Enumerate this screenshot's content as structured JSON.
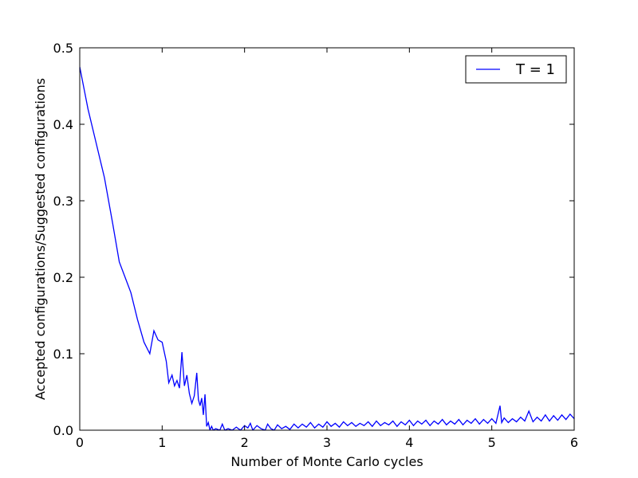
{
  "chart_data": {
    "type": "line",
    "title": "",
    "xlabel": "Number of Monte Carlo cycles",
    "ylabel": "Accepted configurations/Suggested configurations",
    "xlim": [
      0,
      6
    ],
    "ylim": [
      0,
      0.5
    ],
    "xticks": [
      0,
      1,
      2,
      3,
      4,
      5,
      6
    ],
    "xtick_labels": [
      "0",
      "1",
      "2",
      "3",
      "4",
      "5",
      "6"
    ],
    "yticks": [
      0.0,
      0.1,
      0.2,
      0.3,
      0.4,
      0.5
    ],
    "ytick_labels": [
      "0.0",
      "0.1",
      "0.2",
      "0.3",
      "0.4",
      "0.5"
    ],
    "grid": false,
    "legend": {
      "position": "top-right",
      "entries": [
        "T = 1"
      ]
    },
    "series": [
      {
        "name": "T = 1",
        "color": "#0000ff",
        "x": [
          0.0,
          0.1,
          0.2,
          0.3,
          0.4,
          0.48,
          0.55,
          0.62,
          0.7,
          0.78,
          0.85,
          0.9,
          0.95,
          1.0,
          1.05,
          1.08,
          1.12,
          1.15,
          1.18,
          1.21,
          1.24,
          1.27,
          1.3,
          1.33,
          1.36,
          1.39,
          1.42,
          1.44,
          1.46,
          1.48,
          1.5,
          1.52,
          1.54,
          1.56,
          1.58,
          1.6,
          1.62,
          1.65,
          1.7,
          1.73,
          1.76,
          1.8,
          1.85,
          1.9,
          1.95,
          2.0,
          2.04,
          2.07,
          2.1,
          2.15,
          2.2,
          2.25,
          2.28,
          2.32,
          2.36,
          2.4,
          2.45,
          2.5,
          2.55,
          2.6,
          2.65,
          2.7,
          2.75,
          2.8,
          2.85,
          2.9,
          2.95,
          3.0,
          3.05,
          3.1,
          3.15,
          3.2,
          3.25,
          3.3,
          3.35,
          3.4,
          3.45,
          3.5,
          3.55,
          3.6,
          3.65,
          3.7,
          3.75,
          3.8,
          3.85,
          3.9,
          3.95,
          4.0,
          4.05,
          4.1,
          4.15,
          4.2,
          4.25,
          4.3,
          4.35,
          4.4,
          4.45,
          4.5,
          4.55,
          4.6,
          4.65,
          4.7,
          4.75,
          4.8,
          4.85,
          4.9,
          4.95,
          5.0,
          5.05,
          5.1,
          5.12,
          5.15,
          5.2,
          5.25,
          5.3,
          5.35,
          5.4,
          5.45,
          5.5,
          5.55,
          5.6,
          5.65,
          5.7,
          5.75,
          5.8,
          5.85,
          5.9,
          5.95,
          6.0
        ],
        "y": [
          0.475,
          0.42,
          0.375,
          0.33,
          0.27,
          0.22,
          0.2,
          0.18,
          0.145,
          0.115,
          0.1,
          0.13,
          0.118,
          0.115,
          0.09,
          0.062,
          0.072,
          0.058,
          0.065,
          0.055,
          0.102,
          0.058,
          0.072,
          0.048,
          0.035,
          0.045,
          0.075,
          0.04,
          0.032,
          0.042,
          0.02,
          0.047,
          0.005,
          0.01,
          0.0,
          0.005,
          0.0,
          0.002,
          0.0,
          0.008,
          0.0,
          0.002,
          0.0,
          0.004,
          0.0,
          0.006,
          0.003,
          0.009,
          0.0,
          0.006,
          0.002,
          0.0,
          0.008,
          0.002,
          0.0,
          0.007,
          0.002,
          0.005,
          0.001,
          0.008,
          0.003,
          0.008,
          0.004,
          0.01,
          0.003,
          0.008,
          0.004,
          0.011,
          0.005,
          0.009,
          0.004,
          0.011,
          0.006,
          0.01,
          0.005,
          0.009,
          0.006,
          0.011,
          0.005,
          0.012,
          0.006,
          0.01,
          0.007,
          0.012,
          0.005,
          0.011,
          0.007,
          0.013,
          0.006,
          0.012,
          0.008,
          0.013,
          0.006,
          0.012,
          0.008,
          0.014,
          0.007,
          0.012,
          0.008,
          0.014,
          0.007,
          0.013,
          0.009,
          0.015,
          0.008,
          0.014,
          0.009,
          0.015,
          0.009,
          0.032,
          0.01,
          0.016,
          0.01,
          0.015,
          0.011,
          0.017,
          0.012,
          0.025,
          0.011,
          0.017,
          0.012,
          0.02,
          0.012,
          0.019,
          0.013,
          0.02,
          0.014,
          0.021,
          0.015
        ]
      }
    ]
  }
}
